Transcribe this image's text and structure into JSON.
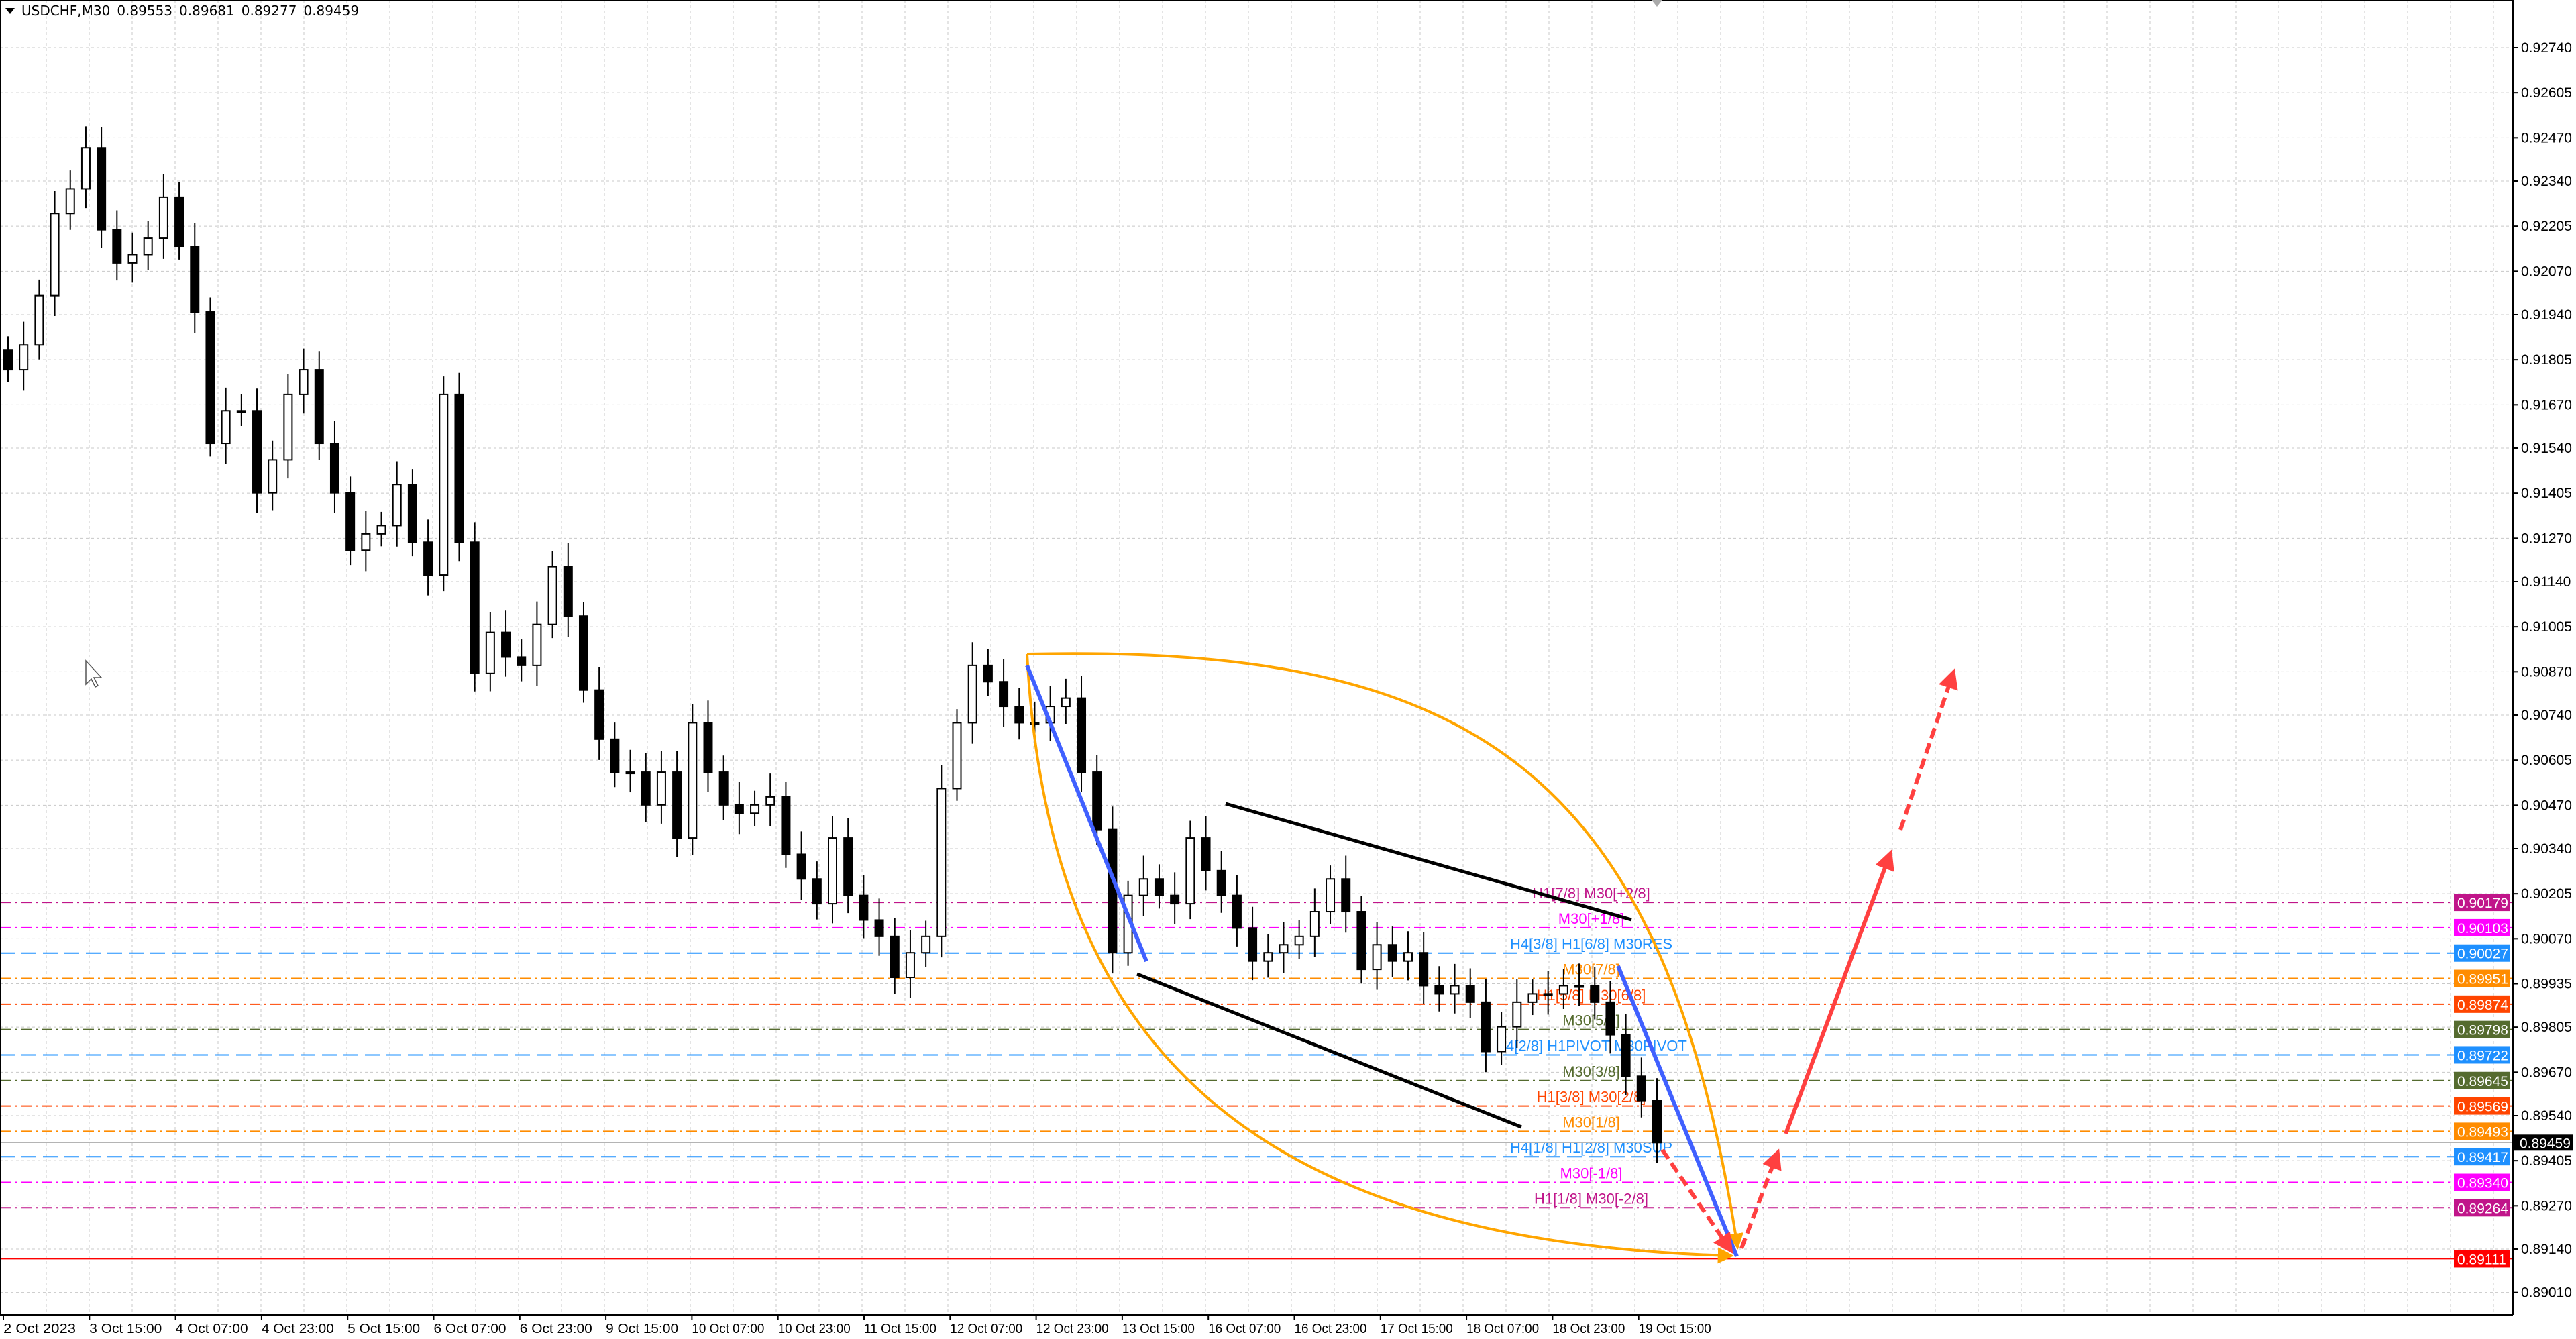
{
  "header": {
    "symbol": "USDCHF,M30",
    "open": "0.89553",
    "high": "0.89681",
    "low": "0.89277",
    "close": "0.89459"
  },
  "chart_data": {
    "type": "candlestick",
    "title": "USDCHF,M30",
    "ylim": [
      0.8896,
      0.9288
    ],
    "grid": true,
    "price_ticks": [
      "0.92740",
      "0.92605",
      "0.92470",
      "0.92340",
      "0.92205",
      "0.92070",
      "0.91940",
      "0.91805",
      "0.91670",
      "0.91540",
      "0.91405",
      "0.91270",
      "0.91140",
      "0.91005",
      "0.90870",
      "0.90740",
      "0.90605",
      "0.90470",
      "0.90340",
      "0.90205",
      "0.90070",
      "0.89935",
      "0.89805",
      "0.89670",
      "0.89540",
      "0.89405",
      "0.89270",
      "0.89140",
      "0.89010"
    ],
    "time_ticks": [
      "2 Oct 2023",
      "3 Oct 15:00",
      "4 Oct 07:00",
      "4 Oct 23:00",
      "5 Oct 15:00",
      "6 Oct 07:00",
      "6 Oct 23:00",
      "9 Oct 15:00",
      "10 Oct 07:00",
      "10 Oct 23:00",
      "11 Oct 15:00",
      "12 Oct 07:00",
      "12 Oct 23:00",
      "13 Oct 15:00",
      "16 Oct 07:00",
      "16 Oct 23:00",
      "17 Oct 15:00",
      "18 Oct 07:00",
      "18 Oct 23:00",
      "19 Oct 15:00"
    ],
    "closes": [
      0.91775,
      0.91849,
      0.91997,
      0.92243,
      0.92317,
      0.9244,
      0.92194,
      0.92095,
      0.9212,
      0.92169,
      0.92292,
      0.92145,
      0.91948,
      0.91554,
      0.91652,
      0.91652,
      0.91406,
      0.91505,
      0.91701,
      0.91775,
      0.91554,
      0.91406,
      0.91234,
      0.91283,
      0.91308,
      0.91431,
      0.91258,
      0.9116,
      0.91701,
      0.91258,
      0.90865,
      0.90988,
      0.90914,
      0.90889,
      0.91012,
      0.91185,
      0.91037,
      0.90815,
      0.90668,
      0.90569,
      0.90569,
      0.90471,
      0.90569,
      0.90372,
      0.90717,
      0.90569,
      0.90471,
      0.90446,
      0.90471,
      0.90495,
      0.90323,
      0.90249,
      0.90175,
      0.90372,
      0.902,
      0.90126,
      0.90077,
      0.89954,
      0.90028,
      0.90077,
      0.9052,
      0.90717,
      0.90889,
      0.9084,
      0.90766,
      0.90717,
      0.90717,
      0.90766,
      0.90791,
      0.90569,
      0.90397,
      0.90028,
      0.902,
      0.90249,
      0.902,
      0.90175,
      0.90372,
      0.90274,
      0.902,
      0.90102,
      0.90003,
      0.90028,
      0.90052,
      0.90077,
      0.90151,
      0.90249,
      0.90151,
      0.89978,
      0.90052,
      0.90003,
      0.90028,
      0.89929,
      0.89905,
      0.89929,
      0.8988,
      0.89732,
      0.89806,
      0.8988,
      0.89905,
      0.89905,
      0.89929,
      0.89929,
      0.8988,
      0.89782,
      0.89658,
      0.89585,
      0.89459
    ],
    "current_price": {
      "value": "0.89459",
      "color": "#000000"
    },
    "levels": [
      {
        "price": 0.90179,
        "value": "0.90179",
        "label": "H1[7/8] M30[+2/8]",
        "color": "#c0158a",
        "dash": "dashdot"
      },
      {
        "price": 0.90103,
        "value": "0.90103",
        "label": "M30[+1/8]",
        "color": "#ff00ff",
        "dash": "dashdot"
      },
      {
        "price": 0.90027,
        "value": "0.90027",
        "label": "H4[3/8] H1[6/8] M30RES",
        "color": "#1e90ff",
        "dash": "dash"
      },
      {
        "price": 0.89951,
        "value": "0.89951",
        "label": "M30[7/8]",
        "color": "#ff8c00",
        "dash": "dashdot"
      },
      {
        "price": 0.89874,
        "value": "0.89874",
        "label": "H1[5/8] M30[6/8]",
        "color": "#ff4500",
        "dash": "dashdot"
      },
      {
        "price": 0.89798,
        "value": "0.89798",
        "label": "M30[5/8]",
        "color": "#556b2f",
        "dash": "dashdot"
      },
      {
        "price": 0.89722,
        "value": "0.89722",
        "label": "H4[2/8] H1PIVOT M30PIVOT",
        "color": "#1e90ff",
        "dash": "dash"
      },
      {
        "price": 0.89645,
        "value": "0.89645",
        "label": "M30[3/8]",
        "color": "#556b2f",
        "dash": "dashdot"
      },
      {
        "price": 0.89569,
        "value": "0.89569",
        "label": "H1[3/8] M30[2/8]",
        "color": "#ff4500",
        "dash": "dashdot"
      },
      {
        "price": 0.89493,
        "value": "0.89493",
        "label": "M30[1/8]",
        "color": "#ff8c00",
        "dash": "dashdot"
      },
      {
        "price": 0.89417,
        "value": "0.89417",
        "label": "H4[1/8] H1[2/8] M30SUP",
        "color": "#1e90ff",
        "dash": "dash"
      },
      {
        "price": 0.8934,
        "value": "0.89340",
        "label": "M30[-1/8]",
        "color": "#ff00ff",
        "dash": "dashdot"
      },
      {
        "price": 0.89264,
        "value": "0.89264",
        "label": "H1[1/8] M30[-2/8]",
        "color": "#c0158a",
        "dash": "dashdot"
      },
      {
        "price": 0.89111,
        "value": "0.89111",
        "label": "",
        "color": "#ff0000",
        "dash": "solid"
      }
    ],
    "drawing_colors": {
      "curve": "#ffa500",
      "trend": "#4060ff",
      "channel": "#000000",
      "forecast": "#ff4040"
    }
  }
}
